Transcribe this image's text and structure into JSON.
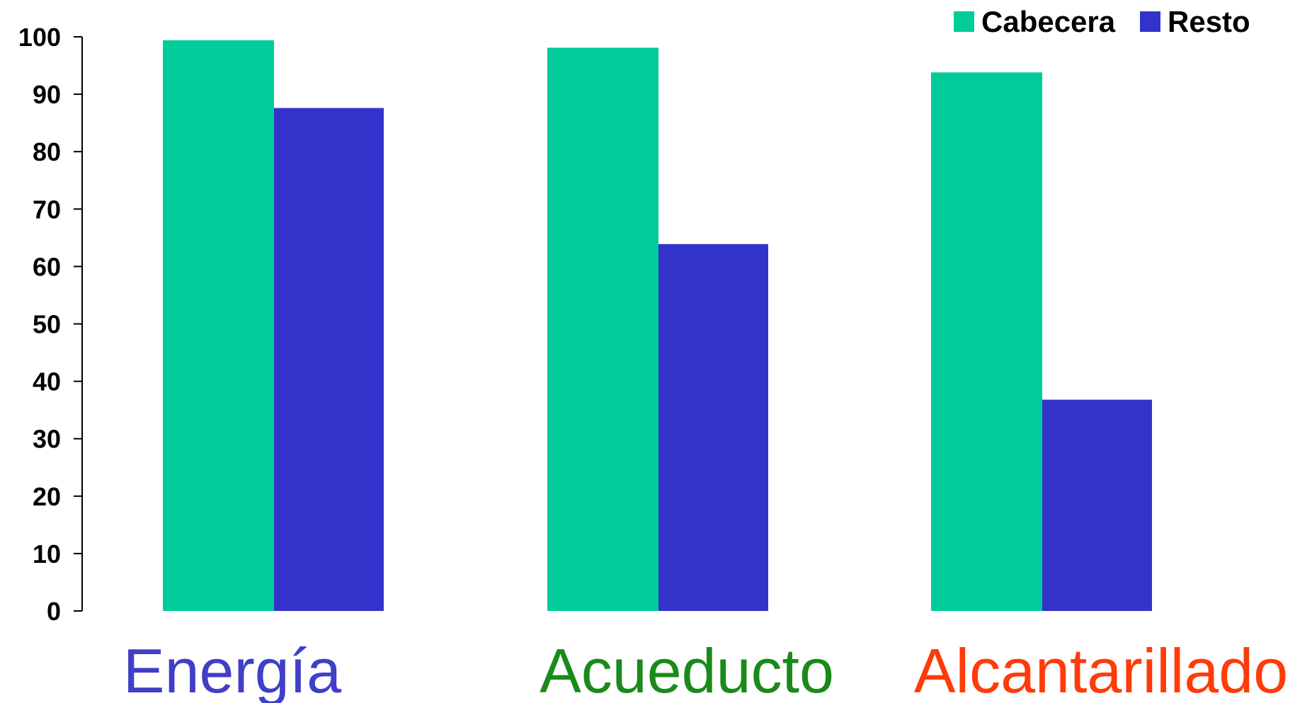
{
  "chart_data": {
    "type": "bar",
    "title": "",
    "xlabel": "",
    "ylabel": "",
    "categories": [
      "Energía",
      "Acueducto",
      "Alcantarillado"
    ],
    "category_colors": [
      "#3f3fc8",
      "#1a8a1a",
      "#ff3b0a"
    ],
    "series": [
      {
        "name": "Cabecera",
        "color": "#00cc99",
        "values": [
          99.4,
          98.1,
          93.8
        ]
      },
      {
        "name": "Resto",
        "color": "#3333cc",
        "values": [
          87.6,
          63.9,
          36.8
        ]
      }
    ],
    "ylim": [
      0,
      100
    ],
    "yticks": [
      "0",
      "10",
      "20",
      "30",
      "40",
      "50",
      "60",
      "70",
      "80",
      "90",
      "100"
    ],
    "grid": false,
    "legend_position": "top-right"
  }
}
